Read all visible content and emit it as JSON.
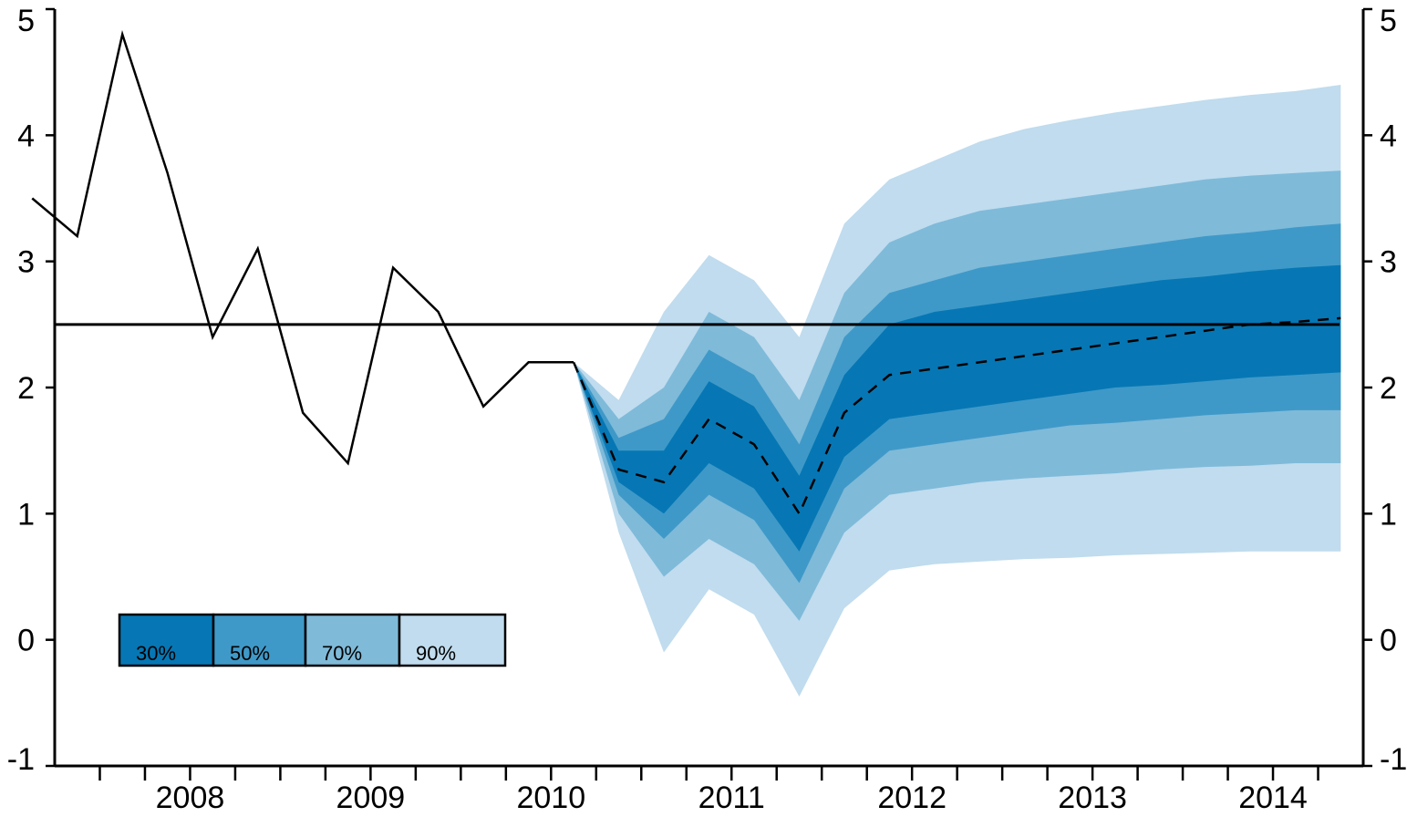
{
  "chart_data": {
    "type": "area",
    "x_axis": {
      "tick_labels": [
        "2008",
        "2009",
        "2010",
        "2011",
        "2012",
        "2013",
        "2014"
      ],
      "range": [
        "2007Q3",
        "2014Q4"
      ]
    },
    "y_axis": {
      "range": [
        -1,
        5
      ],
      "ticks": [
        -1,
        0,
        1,
        2,
        3,
        4,
        5
      ],
      "tick_labels_left": [
        "-1",
        "0",
        "1",
        "2",
        "3",
        "4",
        "5"
      ],
      "tick_labels_right": [
        "-1",
        "0",
        "1",
        "2",
        "3",
        "4",
        "5"
      ]
    },
    "reference_line": {
      "value": 2.5
    },
    "history": {
      "x": [
        "2007Q3",
        "2007Q4",
        "2008Q1",
        "2008Q2",
        "2008Q3",
        "2008Q4",
        "2009Q1",
        "2009Q2",
        "2009Q3",
        "2009Q4",
        "2010Q1",
        "2010Q2",
        "2010Q3"
      ],
      "values": [
        3.5,
        3.2,
        4.8,
        3.7,
        2.4,
        3.1,
        1.8,
        1.4,
        2.95,
        2.6,
        1.85,
        2.2,
        2.2
      ]
    },
    "projection": {
      "x": [
        "2010Q3",
        "2010Q4",
        "2011Q1",
        "2011Q2",
        "2011Q3",
        "2011Q4",
        "2012Q1",
        "2012Q2",
        "2012Q3",
        "2012Q4",
        "2013Q1",
        "2013Q2",
        "2013Q3",
        "2013Q4",
        "2014Q1",
        "2014Q2",
        "2014Q3",
        "2014Q4"
      ],
      "median": [
        2.2,
        1.35,
        1.25,
        1.75,
        1.55,
        1.0,
        1.8,
        2.1,
        2.15,
        2.2,
        2.25,
        2.3,
        2.35,
        2.4,
        2.45,
        2.5,
        2.52,
        2.55
      ],
      "bands": [
        {
          "label": "30%",
          "color": "#0677B4",
          "lower": [
            2.2,
            1.25,
            1.0,
            1.4,
            1.2,
            0.7,
            1.45,
            1.75,
            1.8,
            1.85,
            1.9,
            1.95,
            2.0,
            2.02,
            2.05,
            2.08,
            2.1,
            2.12
          ],
          "upper": [
            2.2,
            1.5,
            1.5,
            2.05,
            1.85,
            1.3,
            2.1,
            2.5,
            2.6,
            2.65,
            2.7,
            2.75,
            2.8,
            2.85,
            2.88,
            2.92,
            2.95,
            2.97
          ]
        },
        {
          "label": "50%",
          "color": "#3F99C8",
          "lower": [
            2.2,
            1.15,
            0.8,
            1.15,
            0.95,
            0.45,
            1.2,
            1.5,
            1.55,
            1.6,
            1.65,
            1.7,
            1.72,
            1.75,
            1.78,
            1.8,
            1.82,
            1.82
          ],
          "upper": [
            2.2,
            1.6,
            1.75,
            2.3,
            2.1,
            1.55,
            2.4,
            2.75,
            2.85,
            2.95,
            3.0,
            3.05,
            3.1,
            3.15,
            3.2,
            3.23,
            3.27,
            3.3
          ]
        },
        {
          "label": "70%",
          "color": "#7FBAD9",
          "lower": [
            2.2,
            1.0,
            0.5,
            0.8,
            0.6,
            0.15,
            0.85,
            1.15,
            1.2,
            1.25,
            1.28,
            1.3,
            1.32,
            1.35,
            1.37,
            1.38,
            1.4,
            1.4
          ],
          "upper": [
            2.2,
            1.75,
            2.0,
            2.6,
            2.4,
            1.9,
            2.75,
            3.15,
            3.3,
            3.4,
            3.45,
            3.5,
            3.55,
            3.6,
            3.65,
            3.68,
            3.7,
            3.72
          ]
        },
        {
          "label": "90%",
          "color": "#C0DCEE",
          "lower": [
            2.2,
            0.85,
            -0.1,
            0.4,
            0.2,
            -0.45,
            0.25,
            0.55,
            0.6,
            0.62,
            0.64,
            0.65,
            0.67,
            0.68,
            0.69,
            0.7,
            0.7,
            0.7
          ],
          "upper": [
            2.2,
            1.9,
            2.6,
            3.05,
            2.85,
            2.4,
            3.3,
            3.65,
            3.8,
            3.95,
            4.05,
            4.12,
            4.18,
            4.23,
            4.28,
            4.32,
            4.35,
            4.4
          ]
        }
      ]
    },
    "legend": {
      "placement": "lower-left",
      "entries": [
        "30%",
        "50%",
        "70%",
        "90%"
      ]
    },
    "grid": false
  }
}
